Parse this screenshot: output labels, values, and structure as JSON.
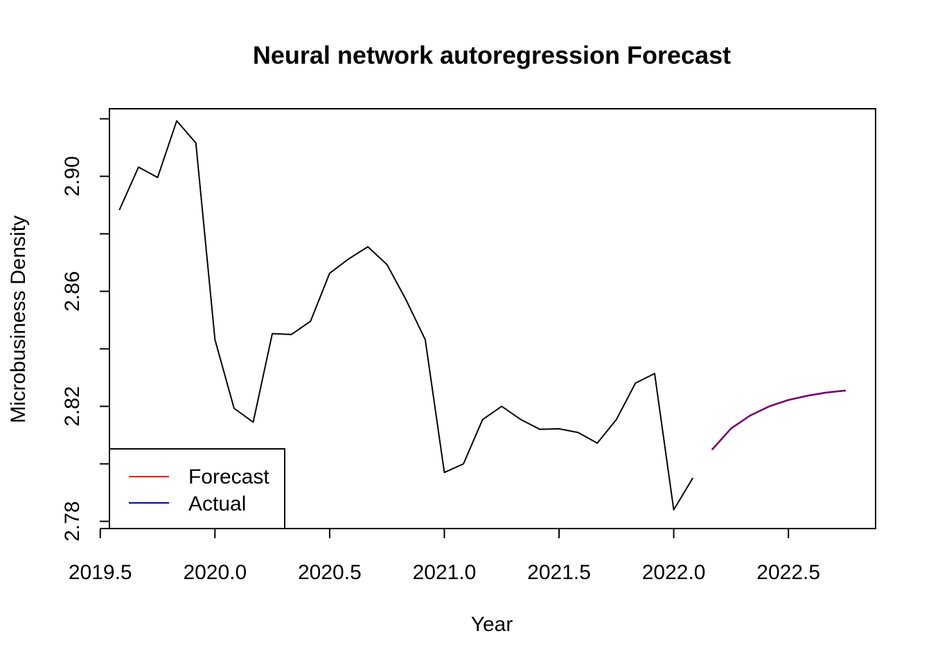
{
  "chart_data": {
    "type": "line",
    "title": "Neural network autoregression Forecast",
    "xlabel": "Year",
    "ylabel": "Microbusiness Density",
    "xlim": [
      2019.54,
      2022.88
    ],
    "ylim": [
      2.7775,
      2.9235
    ],
    "x_ticks": [
      "2019.5",
      "2020.0",
      "2020.5",
      "2021.0",
      "2021.5",
      "2022.0",
      "2022.5"
    ],
    "y_ticks": [
      "2.78",
      "2.82",
      "2.86",
      "2.90"
    ],
    "y_minor_ticks": [
      2.78,
      2.8,
      2.82,
      2.84,
      2.86,
      2.88,
      2.9,
      2.92
    ],
    "series": [
      {
        "color": "#000000",
        "x": [
          2019.5833,
          2019.6667,
          2019.75,
          2019.8333,
          2019.9167,
          2020.0,
          2020.0833,
          2020.1667,
          2020.25,
          2020.3333,
          2020.4167,
          2020.5,
          2020.5833,
          2020.6667,
          2020.75,
          2020.8333,
          2020.9167,
          2021.0,
          2021.0833,
          2021.1667,
          2021.25,
          2021.3333,
          2021.4167,
          2021.5,
          2021.5833,
          2021.6667,
          2021.75,
          2021.8333,
          2021.9167,
          2022.0,
          2022.0833
        ],
        "values": [
          2.8883,
          2.9032,
          2.8996,
          2.9193,
          2.9116,
          2.8432,
          2.8193,
          2.8145,
          2.8453,
          2.845,
          2.8496,
          2.8663,
          2.8713,
          2.8755,
          2.8693,
          2.857,
          2.8432,
          2.797,
          2.8,
          2.8154,
          2.82,
          2.8154,
          2.812,
          2.8122,
          2.8109,
          2.8072,
          2.8154,
          2.8281,
          2.8314,
          2.784,
          2.7951
        ]
      },
      {
        "name": "Forecast",
        "color": "#ff0000",
        "x": [
          2022.1667,
          2022.25,
          2022.3333,
          2022.4167,
          2022.5,
          2022.5833,
          2022.6667,
          2022.75
        ],
        "values": [
          2.8049,
          2.8123,
          2.8168,
          2.82,
          2.8222,
          2.8237,
          2.8248,
          2.8255
        ]
      },
      {
        "name": "Actual",
        "color": "#0000cc",
        "x": [
          2022.1667,
          2022.25,
          2022.3333,
          2022.4167,
          2022.5,
          2022.5833,
          2022.6667,
          2022.75
        ],
        "values": [
          2.8049,
          2.8123,
          2.8168,
          2.82,
          2.8222,
          2.8237,
          2.8248,
          2.8255
        ]
      }
    ],
    "legend": {
      "position": "bottom-left",
      "entries": [
        {
          "label": "Forecast",
          "color": "#ff0000"
        },
        {
          "label": "Actual",
          "color": "#0000cc"
        }
      ]
    },
    "grid": false
  }
}
